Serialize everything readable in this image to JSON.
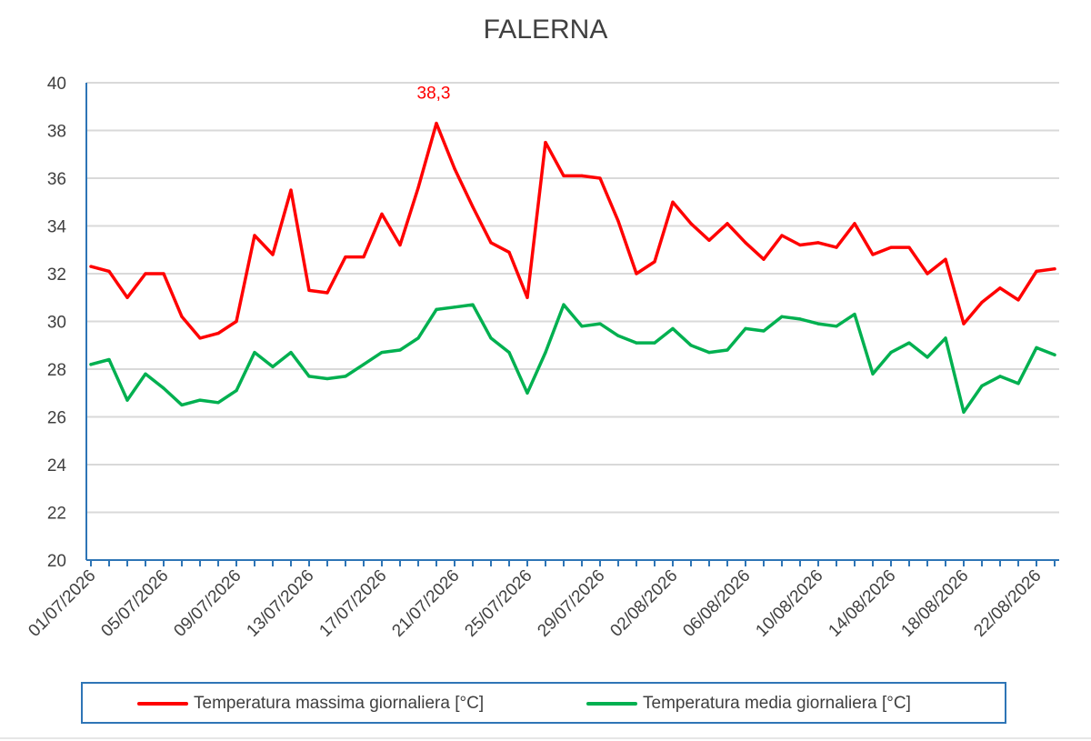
{
  "chart_data": {
    "type": "line",
    "title": "FALERNA",
    "xlabel": "",
    "ylabel": "",
    "ylim": [
      20,
      40
    ],
    "yticks": [
      "20",
      "22",
      "24",
      "26",
      "28",
      "30",
      "32",
      "34",
      "36",
      "38",
      "40"
    ],
    "grid": true,
    "legend_position": "bottom",
    "dates": [
      "01/07/2026",
      "02/07/2026",
      "03/07/2026",
      "04/07/2026",
      "05/07/2026",
      "06/07/2026",
      "07/07/2026",
      "08/07/2026",
      "09/07/2026",
      "10/07/2026",
      "11/07/2026",
      "12/07/2026",
      "13/07/2026",
      "14/07/2026",
      "15/07/2026",
      "16/07/2026",
      "17/07/2026",
      "18/07/2026",
      "19/07/2026",
      "20/07/2026",
      "21/07/2026",
      "22/07/2026",
      "23/07/2026",
      "24/07/2026",
      "25/07/2026",
      "26/07/2026",
      "27/07/2026",
      "28/07/2026",
      "29/07/2026",
      "30/07/2026",
      "31/07/2026",
      "01/08/2026",
      "02/08/2026",
      "03/08/2026",
      "04/08/2026",
      "05/08/2026",
      "06/08/2026",
      "07/08/2026",
      "08/08/2026",
      "09/08/2026",
      "10/08/2026",
      "11/08/2026",
      "12/08/2026",
      "13/08/2026",
      "14/08/2026",
      "15/08/2026",
      "16/08/2026",
      "17/08/2026",
      "18/08/2026",
      "19/08/2026",
      "20/08/2026",
      "21/08/2026",
      "22/08/2026",
      "23/08/2026"
    ],
    "x_tick_labels": [
      "01/07/2026",
      "05/07/2026",
      "09/07/2026",
      "13/07/2026",
      "17/07/2026",
      "21/07/2026",
      "25/07/2026",
      "29/07/2026",
      "02/08/2026",
      "06/08/2026",
      "10/08/2026",
      "14/08/2026",
      "18/08/2026",
      "22/08/2026"
    ],
    "series": [
      {
        "name": "Temperatura massima giornaliera [°C]",
        "color": "#ff0000",
        "values": [
          32.3,
          32.1,
          31.0,
          32.0,
          32.0,
          30.2,
          29.3,
          29.5,
          30.0,
          33.6,
          32.8,
          35.5,
          31.3,
          31.2,
          32.7,
          32.7,
          34.5,
          33.2,
          35.6,
          38.3,
          36.4,
          34.8,
          33.3,
          32.9,
          31.0,
          37.5,
          36.1,
          36.1,
          36.0,
          34.2,
          32.0,
          32.5,
          35.0,
          34.1,
          33.4,
          34.1,
          33.3,
          32.6,
          33.6,
          33.2,
          33.3,
          33.1,
          34.1,
          32.8,
          33.1,
          33.1,
          32.0,
          32.6,
          29.9,
          30.8,
          31.4,
          30.9,
          32.1,
          32.2
        ]
      },
      {
        "name": "Temperatura media giornaliera [°C]",
        "color": "#00b050",
        "values": [
          28.2,
          28.4,
          26.7,
          27.8,
          27.2,
          26.5,
          26.7,
          26.6,
          27.1,
          28.7,
          28.1,
          28.7,
          27.7,
          27.6,
          27.7,
          28.2,
          28.7,
          28.8,
          29.3,
          30.5,
          30.6,
          30.7,
          29.3,
          28.7,
          27.0,
          28.7,
          30.7,
          29.8,
          29.9,
          29.4,
          29.1,
          29.1,
          29.7,
          29.0,
          28.7,
          28.8,
          29.7,
          29.6,
          30.2,
          30.1,
          29.9,
          29.8,
          30.3,
          27.8,
          28.7,
          29.1,
          28.5,
          29.3,
          26.2,
          27.3,
          27.7,
          27.4,
          28.9,
          28.6
        ]
      }
    ],
    "annotations": [
      {
        "series": 0,
        "date": "20/07/2026",
        "text": "38,3",
        "color": "#ff0000"
      }
    ]
  }
}
